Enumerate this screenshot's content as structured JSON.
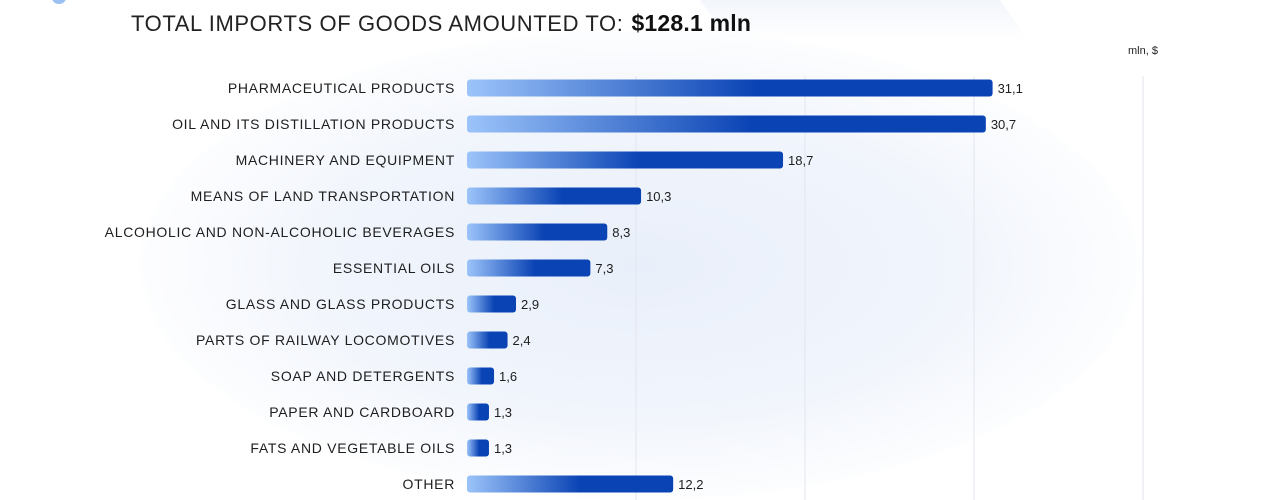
{
  "header": {
    "title": "TOTAL IMPORTS OF GOODS AMOUNTED TO:",
    "amount": "$128.1 mln",
    "unit": "mln, $"
  },
  "colors": {
    "bar_start": "#9cc4fa",
    "bar_end": "#0a43b4",
    "gridline": "#e2e6ee"
  },
  "chart_data": {
    "type": "bar",
    "orientation": "horizontal",
    "title": "TOTAL IMPORTS OF GOODS AMOUNTED TO: $128.1 mln",
    "unit": "mln, $",
    "categories": [
      "PHARMACEUTICAL PRODUCTS",
      "OIL AND ITS DISTILLATION PRODUCTS",
      "MACHINERY AND EQUIPMENT",
      "MEANS OF LAND TRANSPORTATION",
      "ALCOHOLIC AND NON-ALCOHOLIC BEVERAGES",
      "ESSENTIAL OILS",
      "GLASS AND GLASS PRODUCTS",
      "PARTS OF RAILWAY LOCOMOTIVES",
      "SOAP AND DETERGENTS",
      "PAPER AND CARDBOARD",
      "FATS AND VEGETABLE OILS",
      "OTHER"
    ],
    "values": [
      31.1,
      30.7,
      18.7,
      10.3,
      8.3,
      7.3,
      2.9,
      2.4,
      1.6,
      1.3,
      1.3,
      12.2
    ],
    "value_labels": [
      "31,1",
      "30,7",
      "18,7",
      "10,3",
      "8,3",
      "7,3",
      "2,9",
      "2,4",
      "1,6",
      "1,3",
      "1,3",
      "12,2"
    ],
    "xlim": [
      0,
      40
    ],
    "grid": true
  }
}
